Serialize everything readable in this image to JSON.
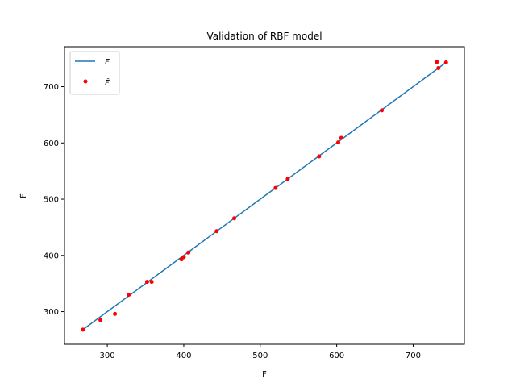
{
  "chart_data": {
    "type": "line",
    "title": "Validation of RBF model",
    "xlabel": "F",
    "ylabel": "F̂",
    "xlim": [
      244,
      767
    ],
    "ylim": [
      242,
      771
    ],
    "xticks": [
      300,
      400,
      500,
      600,
      700
    ],
    "yticks": [
      300,
      400,
      500,
      600,
      700
    ],
    "grid": false,
    "legend": {
      "placement": "top-left",
      "entries": [
        {
          "label": "F",
          "style": "line",
          "color": "#1f77b4"
        },
        {
          "label": "F̂",
          "style": "marker",
          "color": "#ff0000"
        }
      ]
    },
    "series": [
      {
        "name": "F",
        "style": "line",
        "color": "#1f77b4",
        "x": [
          268,
          743
        ],
        "y": [
          268,
          743
        ]
      },
      {
        "name": "F̂",
        "style": "marker",
        "color": "#ff0000",
        "x": [
          268,
          291,
          310,
          328,
          352,
          358,
          397,
          400,
          406,
          443,
          466,
          520,
          536,
          577,
          602,
          606,
          659,
          731,
          733,
          743
        ],
        "y": [
          268,
          285,
          296,
          330,
          353,
          353,
          393,
          397,
          405,
          443,
          466,
          520,
          536,
          576,
          601,
          609,
          658,
          744,
          733,
          743
        ]
      }
    ]
  }
}
